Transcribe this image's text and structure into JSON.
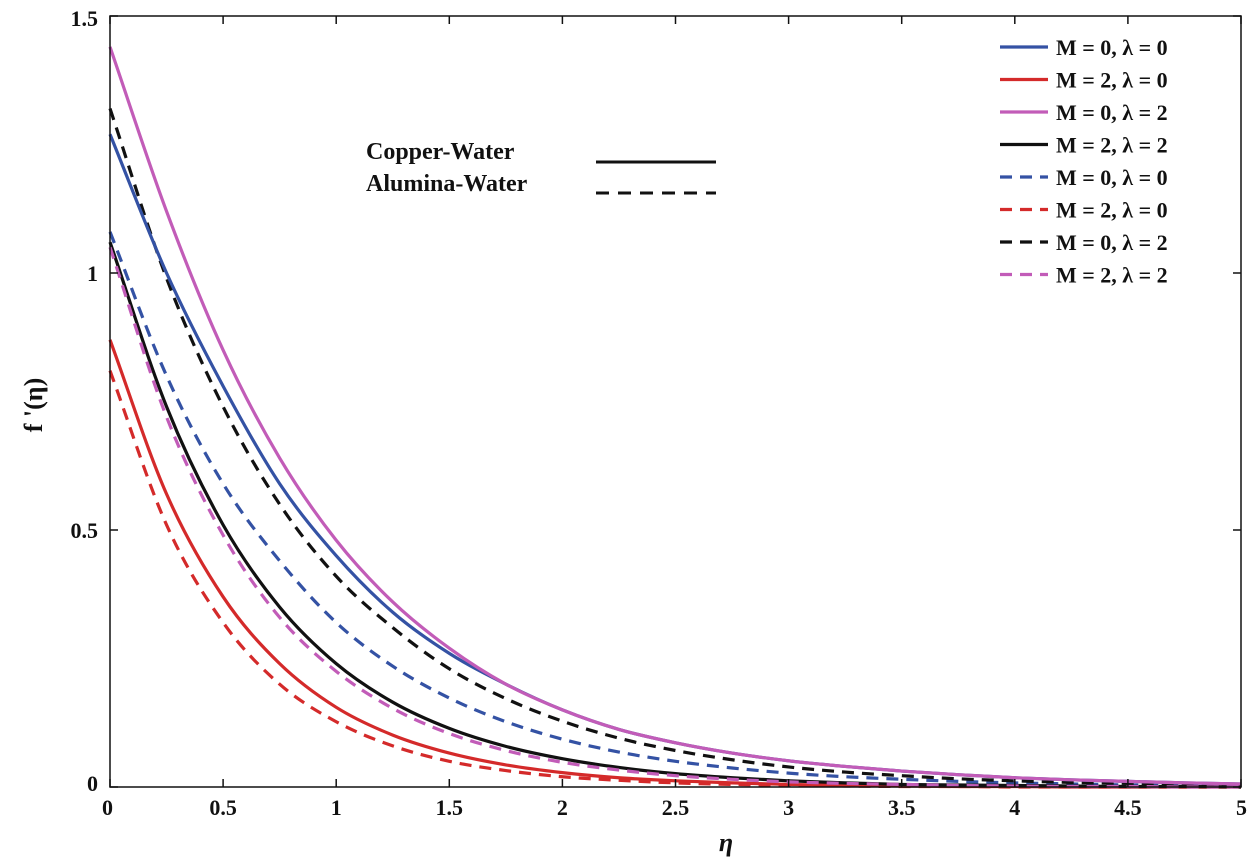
{
  "chart_data": {
    "type": "line",
    "title": "",
    "xlabel": "η",
    "ylabel": "f '(η)",
    "xlim": [
      0,
      5
    ],
    "ylim": [
      0,
      1.5
    ],
    "xticks": [
      0,
      0.5,
      1,
      1.5,
      2,
      2.5,
      3,
      3.5,
      4,
      4.5,
      5
    ],
    "xtick_labels": [
      "0",
      "0.5",
      "1",
      "1.5",
      "2",
      "2.5",
      "3",
      "3.5",
      "4",
      "4.5",
      "5"
    ],
    "yticks": [
      0,
      0.5,
      1,
      1.5
    ],
    "ytick_labels": [
      "0",
      "0.5",
      "1",
      "1.5"
    ],
    "grid": false,
    "legend_position": "top-right",
    "x": [
      0,
      0.25,
      0.5,
      0.75,
      1,
      1.25,
      1.5,
      1.75,
      2,
      2.25,
      2.5,
      2.75,
      3,
      3.25,
      3.5,
      3.75,
      4,
      4.25,
      4.5,
      4.75,
      5
    ],
    "series": [
      {
        "name": "M = 0, λ = 0",
        "color": "#3452a4",
        "style": "solid",
        "values": [
          1.27,
          1.0,
          0.78,
          0.59,
          0.45,
          0.34,
          0.26,
          0.2,
          0.15,
          0.112,
          0.086,
          0.066,
          0.051,
          0.04,
          0.031,
          0.024,
          0.018,
          0.014,
          0.011,
          0.008,
          0.006
        ]
      },
      {
        "name": "M = 2, λ = 0",
        "color": "#d42a2a",
        "style": "solid",
        "values": [
          0.87,
          0.57,
          0.37,
          0.24,
          0.155,
          0.101,
          0.066,
          0.043,
          0.028,
          0.018,
          0.012,
          0.008,
          0.005,
          0.003,
          0.002,
          0.001,
          0.001,
          0.0,
          0.0,
          0.0,
          0.0
        ]
      },
      {
        "name": "M = 0, λ = 2",
        "color": "#c25cb8",
        "style": "solid",
        "values": [
          1.44,
          1.12,
          0.85,
          0.64,
          0.48,
          0.36,
          0.27,
          0.2,
          0.15,
          0.112,
          0.086,
          0.066,
          0.051,
          0.04,
          0.031,
          0.024,
          0.018,
          0.014,
          0.011,
          0.008,
          0.006
        ]
      },
      {
        "name": "M = 2, λ = 2",
        "color": "#111111",
        "style": "solid",
        "values": [
          1.06,
          0.74,
          0.51,
          0.35,
          0.24,
          0.165,
          0.114,
          0.079,
          0.055,
          0.038,
          0.026,
          0.018,
          0.012,
          0.008,
          0.005,
          0.004,
          0.003,
          0.002,
          0.001,
          0.001,
          0.0
        ]
      },
      {
        "name": "M = 0, λ = 0",
        "color": "#3452a4",
        "style": "dashed",
        "values": [
          1.08,
          0.8,
          0.59,
          0.44,
          0.32,
          0.235,
          0.173,
          0.127,
          0.093,
          0.068,
          0.05,
          0.037,
          0.027,
          0.02,
          0.015,
          0.011,
          0.008,
          0.006,
          0.004,
          0.003,
          0.002
        ]
      },
      {
        "name": "M = 2, λ = 0",
        "color": "#d42a2a",
        "style": "dashed",
        "values": [
          0.81,
          0.51,
          0.32,
          0.2,
          0.127,
          0.08,
          0.05,
          0.032,
          0.02,
          0.013,
          0.008,
          0.005,
          0.003,
          0.002,
          0.001,
          0.001,
          0.0,
          0.0,
          0.0,
          0.0,
          0.0
        ]
      },
      {
        "name": "M = 0, λ = 2",
        "color": "#111111",
        "style": "dashed",
        "values": [
          1.32,
          0.99,
          0.74,
          0.55,
          0.41,
          0.31,
          0.23,
          0.172,
          0.128,
          0.095,
          0.071,
          0.053,
          0.039,
          0.029,
          0.022,
          0.016,
          0.012,
          0.009,
          0.007,
          0.005,
          0.003
        ]
      },
      {
        "name": "M = 2, λ = 2",
        "color": "#c25cb8",
        "style": "dashed",
        "values": [
          1.05,
          0.72,
          0.49,
          0.33,
          0.225,
          0.153,
          0.104,
          0.071,
          0.048,
          0.033,
          0.022,
          0.015,
          0.01,
          0.007,
          0.005,
          0.003,
          0.002,
          0.001,
          0.001,
          0.0,
          0.0
        ]
      }
    ],
    "line_style_key": [
      {
        "label": "Copper-Water",
        "style": "solid"
      },
      {
        "label": "Alumina-Water",
        "style": "dashed"
      }
    ]
  }
}
